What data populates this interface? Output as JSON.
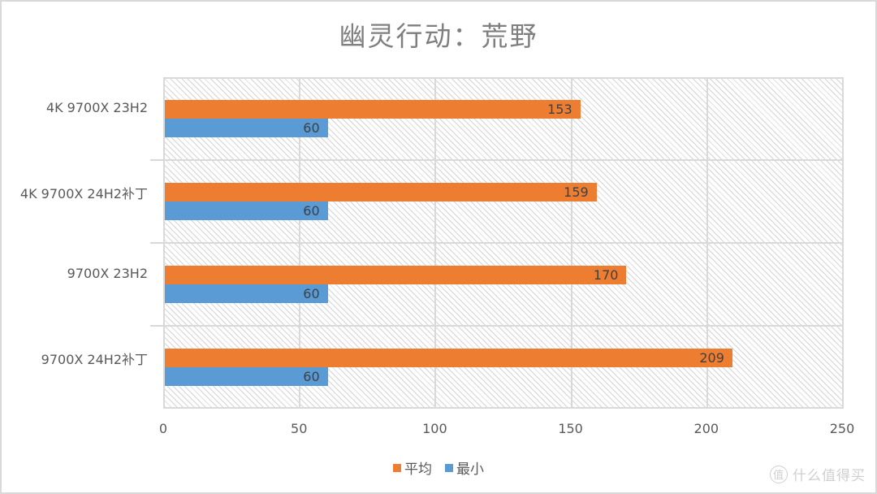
{
  "title": "幽灵行动：荒野",
  "colors": {
    "avg": "#ed7d31",
    "min": "#5b9bd5",
    "grid": "#d9d9d9",
    "text": "#595959"
  },
  "legend": {
    "items": [
      {
        "label": "平均",
        "color": "#ed7d31"
      },
      {
        "label": "最小",
        "color": "#5b9bd5"
      }
    ]
  },
  "xaxis": {
    "ticks": [
      "0",
      "50",
      "100",
      "150",
      "200",
      "250"
    ]
  },
  "categories": [
    {
      "label": "4K 9700X 23H2",
      "avg": "153",
      "min": "60"
    },
    {
      "label": "4K 9700X 24H2补丁",
      "avg": "159",
      "min": "60"
    },
    {
      "label": "9700X 23H2",
      "avg": "170",
      "min": "60"
    },
    {
      "label": "9700X 24H2补丁",
      "avg": "209",
      "min": "60"
    }
  ],
  "watermark": {
    "icon_glyph": "值",
    "text": "什么值得买"
  },
  "chart_data": {
    "type": "bar",
    "orientation": "horizontal",
    "title": "幽灵行动：荒野",
    "categories": [
      "4K 9700X 23H2",
      "4K 9700X 24H2补丁",
      "9700X 23H2",
      "9700X 24H2补丁"
    ],
    "series": [
      {
        "name": "平均",
        "color": "#ed7d31",
        "values": [
          153,
          159,
          170,
          209
        ]
      },
      {
        "name": "最小",
        "color": "#5b9bd5",
        "values": [
          60,
          60,
          60,
          60
        ]
      }
    ],
    "xlabel": "",
    "ylabel": "",
    "xlim": [
      0,
      250
    ],
    "xticks": [
      0,
      50,
      100,
      150,
      200,
      250
    ],
    "grid": true,
    "legend_position": "bottom",
    "data_labels": true
  }
}
